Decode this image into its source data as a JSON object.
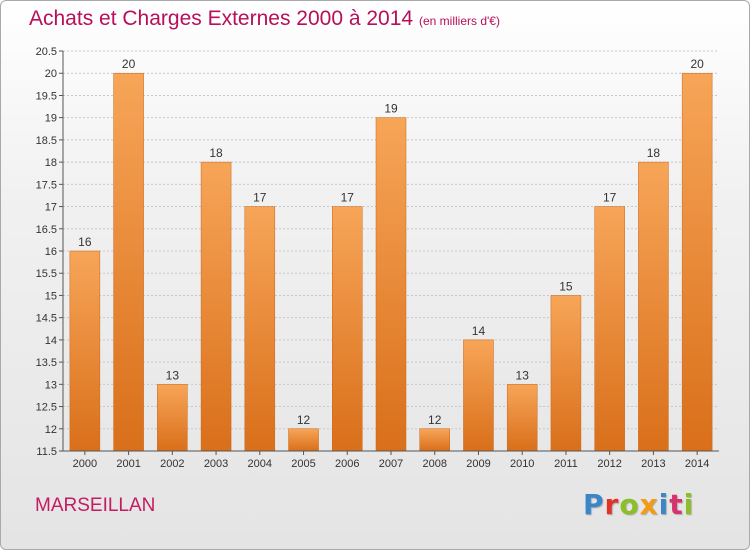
{
  "header": {
    "title": "Achats et Charges Externes 2000 à 2014",
    "subtitle": "(en milliers d'€)"
  },
  "footer": {
    "commune": "MARSEILLAN",
    "logo_text": "Proxiti",
    "logo_colors": [
      "#3a86c8",
      "#e2322b",
      "#8cbf26",
      "#f39c12",
      "#3a86c8",
      "#d6336c",
      "#8cbf26"
    ]
  },
  "colors": {
    "bar_light": "#f7a558",
    "bar_dark": "#d96f1a",
    "grid": "#c8c8c8",
    "axis": "#555555",
    "text": "#333333",
    "accent": "#b80f5a"
  },
  "chart_data": {
    "type": "bar",
    "categories": [
      "2000",
      "2001",
      "2002",
      "2003",
      "2004",
      "2005",
      "2006",
      "2007",
      "2008",
      "2009",
      "2010",
      "2011",
      "2012",
      "2013",
      "2014"
    ],
    "values": [
      16,
      20,
      13,
      18,
      17,
      12,
      17,
      19,
      12,
      14,
      13,
      15,
      17,
      18,
      20
    ],
    "data_labels": [
      "16",
      "20",
      "13",
      "18",
      "17",
      "12",
      "17",
      "19",
      "12",
      "14",
      "13",
      "15",
      "17",
      "18",
      "20"
    ],
    "y_ticks": [
      "11.5",
      "12",
      "12.5",
      "13",
      "13.5",
      "14",
      "14.5",
      "15",
      "15.5",
      "16",
      "16.5",
      "17",
      "17.5",
      "18",
      "18.5",
      "19",
      "19.5",
      "20",
      "20.5"
    ],
    "ylim": [
      11.5,
      20.5
    ],
    "title": "Achats et Charges Externes 2000 à 2014",
    "xlabel": "",
    "ylabel": "",
    "grid": true,
    "legend": "none"
  }
}
